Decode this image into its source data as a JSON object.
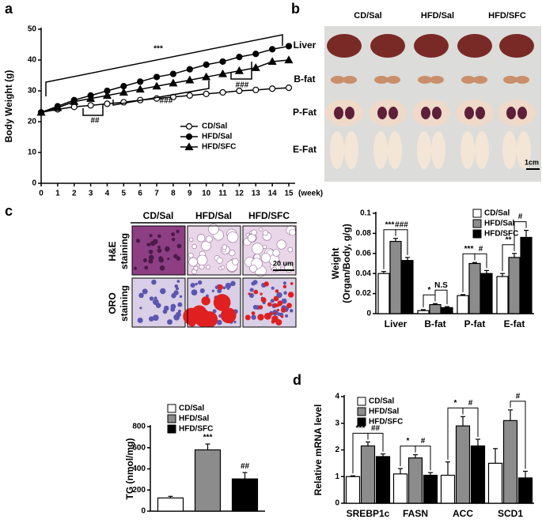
{
  "panel_labels": [
    "a",
    "b",
    "c",
    "d"
  ],
  "photos": {
    "organs": {
      "columns": [
        "CD/Sal",
        "HFD/Sal",
        "HFD/SFC"
      ],
      "rows": [
        "Liver",
        "B-fat",
        "P-Fat",
        "E-Fat"
      ],
      "scale_bar": "1cm"
    },
    "histology": {
      "columns": [
        "CD/Sal",
        "HFD/Sal",
        "HFD/SFC"
      ],
      "rows": [
        [
          "H&E",
          "staining"
        ],
        [
          "ORO",
          "staining"
        ]
      ],
      "scale_bar": "20 um"
    }
  },
  "chart_data": [
    {
      "type": "line",
      "y_label": "Body Weight (g)",
      "x_label": "(week)",
      "x": [
        0,
        1,
        2,
        3,
        4,
        5,
        6,
        7,
        8,
        9,
        10,
        11,
        12,
        13,
        14,
        15
      ],
      "xlim": [
        0,
        15
      ],
      "xticks": [
        0,
        1,
        2,
        3,
        4,
        5,
        6,
        7,
        8,
        9,
        10,
        11,
        12,
        13,
        14,
        15
      ],
      "ylim": [
        0,
        50
      ],
      "yticks": [
        0,
        10,
        20,
        30,
        40,
        50
      ],
      "series": [
        {
          "name": "CD/Sal",
          "color": "#ffffff",
          "marker": "circle",
          "values": [
            23,
            24,
            24.8,
            25.3,
            25.8,
            26.3,
            27,
            27.5,
            28,
            28.5,
            29,
            29.5,
            30,
            30.3,
            30.7,
            31
          ]
        },
        {
          "name": "HFD/Sal",
          "color": "#000000",
          "marker": "circle",
          "values": [
            23,
            25,
            27,
            28.5,
            30,
            31.5,
            33,
            34.5,
            35.5,
            37,
            38.5,
            39.5,
            41,
            42,
            43.5,
            44.5
          ]
        },
        {
          "name": "HFD/SFC",
          "color": "#000000",
          "marker": "triangle",
          "values": [
            23,
            24.5,
            26.5,
            27.5,
            28.5,
            29.5,
            30.5,
            31.5,
            32.5,
            33.5,
            34.5,
            35.5,
            36.5,
            37.5,
            39.5,
            40
          ]
        }
      ],
      "annotations": [
        "***",
        "##",
        "###",
        "###"
      ]
    },
    {
      "type": "bar",
      "y_label": [
        "Weight",
        "(Organ/Body, g/g)"
      ],
      "categories": [
        "Liver",
        "B-fat",
        "P-fat",
        "E-fat"
      ],
      "ylim": [
        0,
        0.1
      ],
      "yticks": [
        0,
        0.02,
        0.04,
        0.06,
        0.08,
        0.1
      ],
      "series": [
        {
          "name": "CD/Sal",
          "color": "#ffffff",
          "values": [
            0.04,
            0.003,
            0.018,
            0.037
          ],
          "errors": [
            0.002,
            0.001,
            0.001,
            0.003
          ]
        },
        {
          "name": "HFD/Sal",
          "color": "#8c8c8c",
          "values": [
            0.072,
            0.009,
            0.05,
            0.056
          ],
          "errors": [
            0.003,
            0.001,
            0.001,
            0.004
          ]
        },
        {
          "name": "HFD/SFC",
          "color": "#000000",
          "values": [
            0.053,
            0.006,
            0.04,
            0.076
          ],
          "errors": [
            0.003,
            0.001,
            0.003,
            0.007
          ]
        }
      ],
      "annotations": [
        "***",
        "###",
        "*",
        "N.S",
        "***",
        "#",
        "**",
        "#"
      ]
    },
    {
      "type": "bar",
      "y_label": "TG (nmol/mg)",
      "categories": [
        null
      ],
      "ylim": [
        0,
        800
      ],
      "yticks": [
        0,
        200,
        400,
        600,
        800
      ],
      "series": [
        {
          "name": "CD/Sal",
          "color": "#ffffff",
          "values": [
            125
          ],
          "errors": [
            15
          ]
        },
        {
          "name": "HFD/Sal",
          "color": "#8c8c8c",
          "values": [
            580
          ],
          "errors": [
            55
          ]
        },
        {
          "name": "HFD/SFC",
          "color": "#000000",
          "values": [
            305
          ],
          "errors": [
            60
          ]
        }
      ],
      "annotations": [
        "***",
        "##"
      ]
    },
    {
      "type": "bar",
      "y_label": "Relative mRNA level",
      "categories": [
        "SREBP1c",
        "FASN",
        "ACC",
        "SCD1"
      ],
      "ylim": [
        0,
        4
      ],
      "yticks": [
        0,
        1,
        2,
        3,
        4
      ],
      "series": [
        {
          "name": "CD/Sal",
          "color": "#ffffff",
          "values": [
            1.0,
            1.1,
            1.05,
            1.5
          ],
          "errors": [
            0.03,
            0.2,
            0.5,
            0.55
          ]
        },
        {
          "name": "HFD/Sal",
          "color": "#8c8c8c",
          "values": [
            2.15,
            1.7,
            2.9,
            3.1
          ],
          "errors": [
            0.15,
            0.12,
            0.35,
            0.4
          ]
        },
        {
          "name": "HFD/SFC",
          "color": "#000000",
          "values": [
            1.75,
            1.05,
            2.15,
            0.95
          ],
          "errors": [
            0.1,
            0.1,
            0.25,
            0.25
          ]
        }
      ],
      "annotations": [
        "***",
        "##",
        "*",
        "#",
        "*",
        "#",
        "#"
      ]
    }
  ]
}
